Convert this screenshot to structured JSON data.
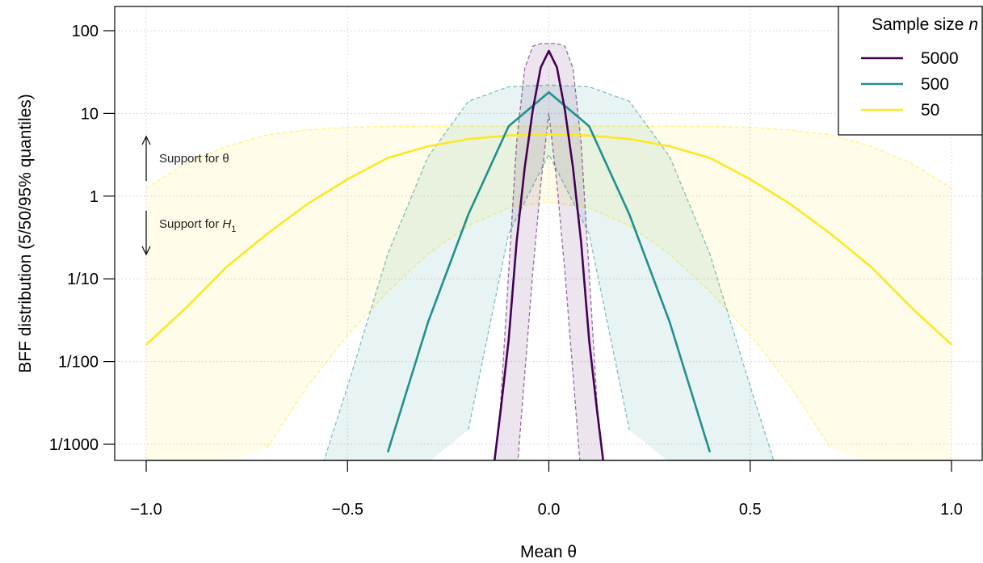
{
  "chart_data": {
    "type": "line",
    "xlabel": "Mean θ",
    "ylabel": "BFF distribution (5/50/95% quantiles)",
    "x_ticks": [
      "−1.0",
      "−0.5",
      "0.0",
      "0.5",
      "1.0"
    ],
    "x_tick_values": [
      -1.0,
      -0.5,
      0.0,
      0.5,
      1.0
    ],
    "xlim": [
      -1.0,
      1.0
    ],
    "y_scale": "log",
    "y_ticks": [
      "100",
      "10",
      "1",
      "1/10",
      "1/100",
      "1/1000"
    ],
    "y_tick_values": [
      100,
      10,
      1,
      0.1,
      0.01,
      0.001
    ],
    "ylim": [
      0.0006,
      400
    ],
    "grid": true,
    "legend": {
      "title_text": "Sample size ",
      "title_var": "n",
      "placement": "top-right"
    },
    "annotations": {
      "up_text": "Support for θ",
      "down_text": "Support for ",
      "down_var": "H",
      "down_sub": "1",
      "at_x": -1.0
    },
    "series": [
      {
        "name": "5000",
        "color": "#440154",
        "x": [
          -0.2,
          -0.14,
          -0.12,
          -0.1,
          -0.08,
          -0.06,
          -0.04,
          -0.02,
          0.0,
          0.02,
          0.04,
          0.06,
          0.08,
          0.1,
          0.12,
          0.14,
          0.2
        ],
        "median": [
          null,
          0.0004,
          0.0025,
          0.018,
          0.28,
          2.2,
          11,
          36,
          57,
          36,
          11,
          2.2,
          0.28,
          0.018,
          0.0025,
          0.0004,
          null
        ],
        "q05": [
          null,
          null,
          null,
          null,
          0.0004,
          0.007,
          0.12,
          1.4,
          10,
          1.4,
          0.12,
          0.007,
          0.0004,
          null,
          null,
          null,
          null
        ],
        "q95": [
          null,
          0.0004,
          0.003,
          0.12,
          4.5,
          35,
          65,
          70,
          70,
          70,
          65,
          35,
          4.5,
          0.12,
          0.003,
          0.0004,
          null
        ]
      },
      {
        "name": "500",
        "color": "#21908C",
        "x": [
          -0.6,
          -0.56,
          -0.5,
          -0.4,
          -0.3,
          -0.2,
          -0.1,
          0.0,
          0.1,
          0.2,
          0.3,
          0.4,
          0.5,
          0.56,
          0.6
        ],
        "median": [
          null,
          null,
          null,
          0.0008,
          0.03,
          0.6,
          7,
          18,
          7,
          0.6,
          0.03,
          0.0008,
          null,
          null,
          null
        ],
        "q05": [
          null,
          null,
          null,
          null,
          null,
          0.0015,
          0.35,
          3.2,
          0.35,
          0.0015,
          null,
          null,
          null,
          null,
          null
        ],
        "q95": [
          null,
          0.0006,
          0.005,
          0.2,
          3,
          14,
          21,
          22,
          21,
          14,
          3,
          0.2,
          0.005,
          0.0006,
          null
        ]
      },
      {
        "name": "50",
        "color": "#FDE725",
        "x": [
          -1.0,
          -0.9,
          -0.8,
          -0.7,
          -0.6,
          -0.5,
          -0.4,
          -0.3,
          -0.2,
          -0.1,
          0.0,
          0.1,
          0.2,
          0.3,
          0.4,
          0.5,
          0.6,
          0.7,
          0.8,
          0.9,
          1.0
        ],
        "median": [
          0.016,
          0.045,
          0.14,
          0.35,
          0.8,
          1.6,
          2.9,
          4.0,
          4.9,
          5.4,
          5.6,
          5.4,
          4.9,
          4.0,
          2.9,
          1.6,
          0.8,
          0.35,
          0.14,
          0.045,
          0.016
        ],
        "q05": [
          null,
          null,
          null,
          0.0009,
          0.005,
          0.021,
          0.07,
          0.2,
          0.44,
          0.72,
          0.85,
          0.72,
          0.44,
          0.2,
          0.07,
          0.021,
          0.005,
          0.0009,
          null,
          null,
          null
        ],
        "q95": [
          1.25,
          2.5,
          4.0,
          5.5,
          6.3,
          6.8,
          7.0,
          7.0,
          7.0,
          7.0,
          7.0,
          7.0,
          7.0,
          7.0,
          7.0,
          6.8,
          6.3,
          5.5,
          4.0,
          2.5,
          1.25
        ]
      }
    ]
  }
}
